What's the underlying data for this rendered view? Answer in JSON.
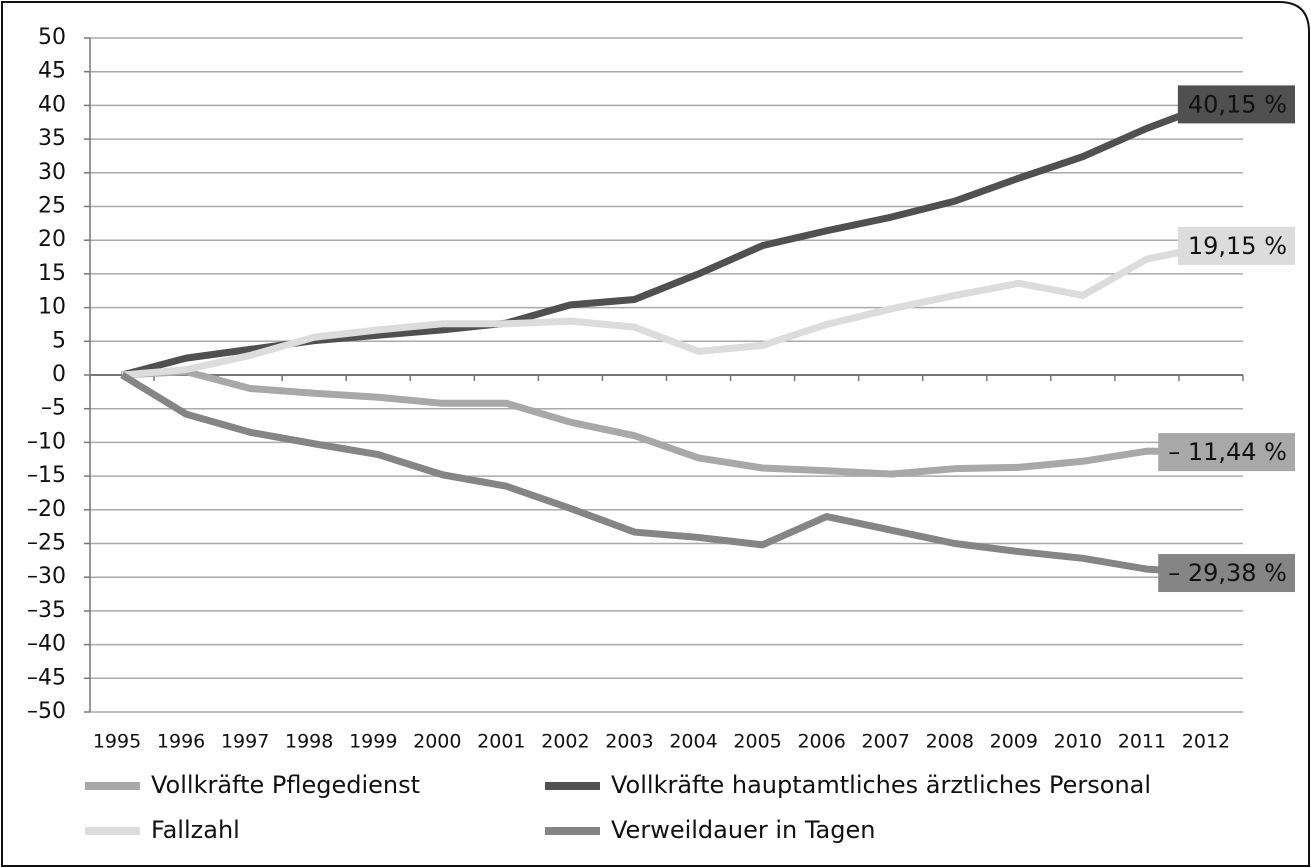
{
  "chart_data": {
    "type": "line",
    "categories": [
      "1995",
      "1996",
      "1997",
      "1998",
      "1999",
      "2000",
      "2001",
      "2002",
      "2003",
      "2004",
      "2005",
      "2006",
      "2007",
      "2008",
      "2009",
      "2010",
      "2011",
      "2012"
    ],
    "series": [
      {
        "name": "Vollkräfte Pflegedienst",
        "color": "#a8a8a8",
        "values": [
          0,
          0.5,
          -2,
          -2.7,
          -3.3,
          -4.2,
          -4.2,
          -7,
          -9,
          -12.3,
          -13.8,
          -14.2,
          -14.7,
          -13.9,
          -13.7,
          -12.8,
          -11.3,
          -11.44
        ],
        "value_labels": [
          null,
          null,
          null,
          null,
          null,
          null,
          null,
          null,
          null,
          null,
          null,
          null,
          null,
          null,
          null,
          null,
          null,
          "– 11,44 %"
        ]
      },
      {
        "name": "Vollkräfte hauptamtliches ärztliches Personal",
        "color": "#505050",
        "values": [
          0,
          2.5,
          3.8,
          5.1,
          5.9,
          6.7,
          7.7,
          10.4,
          11.2,
          15,
          19.2,
          21.4,
          23.4,
          25.8,
          29.2,
          32.4,
          36.6,
          40.15
        ],
        "value_labels": [
          null,
          null,
          null,
          null,
          null,
          null,
          null,
          null,
          null,
          null,
          null,
          null,
          null,
          null,
          null,
          null,
          null,
          "40,15 %"
        ]
      },
      {
        "name": "Fallzahl",
        "color": "#dcdcdc",
        "values": [
          0,
          0.8,
          2.9,
          5.6,
          6.7,
          7.6,
          7.6,
          8,
          7.1,
          3.5,
          4.4,
          7.5,
          9.8,
          11.8,
          13.6,
          11.8,
          17.2,
          19.15
        ],
        "value_labels": [
          null,
          null,
          null,
          null,
          null,
          null,
          null,
          null,
          null,
          null,
          null,
          null,
          null,
          null,
          null,
          null,
          null,
          "19,15 %"
        ]
      },
      {
        "name": "Verweildauer in Tagen",
        "color": "#858585",
        "values": [
          0,
          -5.8,
          -8.5,
          -10.2,
          -11.8,
          -14.8,
          -16.5,
          -19.8,
          -23.3,
          -24.1,
          -25.2,
          -21,
          -23,
          -25,
          -26.2,
          -27.2,
          -28.8,
          -29.38
        ],
        "value_labels": [
          null,
          null,
          null,
          null,
          null,
          null,
          null,
          null,
          null,
          null,
          null,
          null,
          null,
          null,
          null,
          null,
          null,
          "– 29,38 %"
        ]
      }
    ],
    "ylim": [
      -50,
      50
    ],
    "yticks": [
      50,
      45,
      40,
      35,
      30,
      25,
      20,
      15,
      10,
      5,
      0,
      {
        "value": -5,
        "label": "–5"
      },
      {
        "value": -10,
        "label": "–10"
      },
      {
        "value": -15,
        "label": "–15"
      },
      {
        "value": -20,
        "label": "–20"
      },
      {
        "value": -25,
        "label": "–25"
      },
      {
        "value": -30,
        "label": "–30"
      },
      {
        "value": -35,
        "label": "–35"
      },
      {
        "value": -40,
        "label": "–40"
      },
      {
        "value": -45,
        "label": "–45"
      },
      {
        "value": -50,
        "label": "–50"
      }
    ],
    "grid": true
  }
}
